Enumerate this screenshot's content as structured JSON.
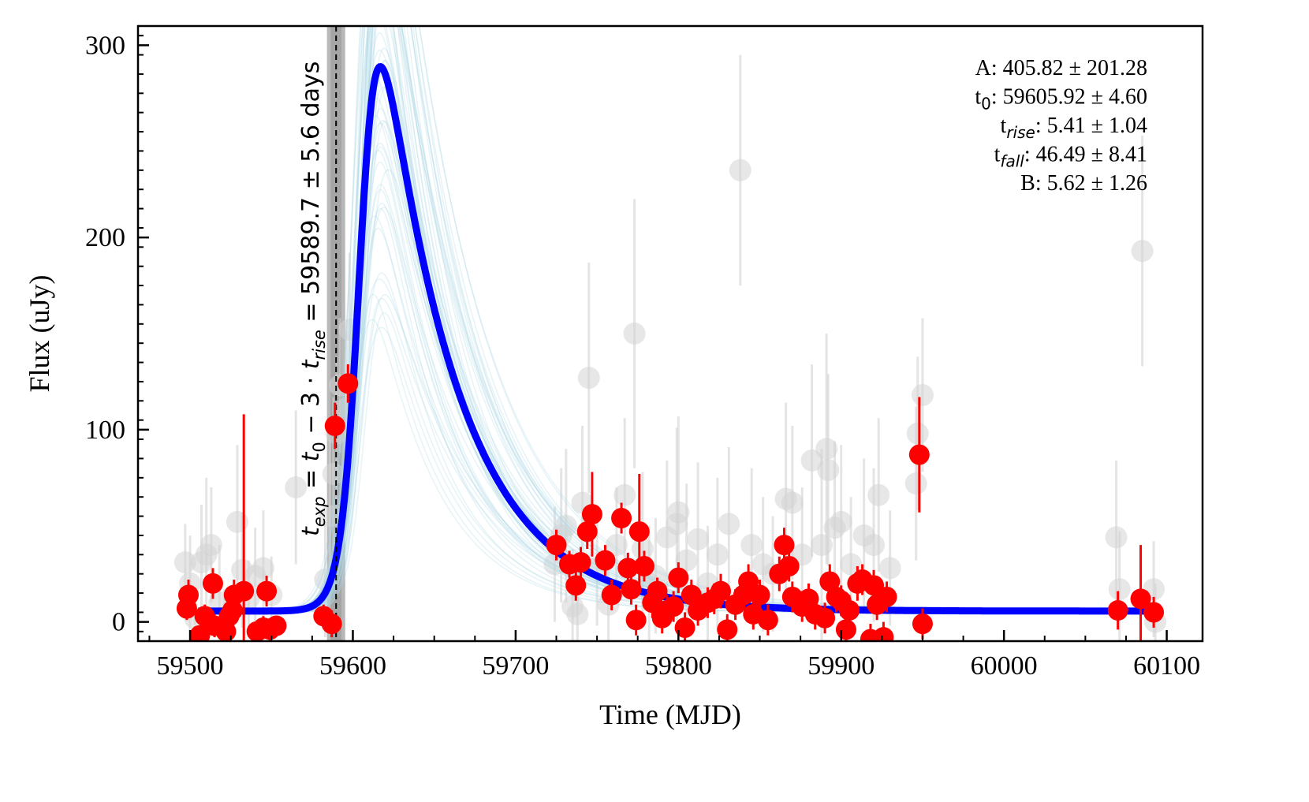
{
  "chart_data": {
    "type": "scatter",
    "xlabel": "Time (MJD)",
    "ylabel": "Flux (uJy)",
    "xlim": [
      59468,
      60122
    ],
    "ylim": [
      -10,
      310
    ],
    "x_ticks": [
      59500,
      59600,
      59700,
      59800,
      59900,
      60000,
      60100
    ],
    "y_ticks": [
      0,
      100,
      200,
      300
    ],
    "grid": false,
    "colors": {
      "detections": "#ff0000",
      "other": "#d3d3d3",
      "model": "#0000ff",
      "samples": "#add8e6",
      "explosion_band": "#808080"
    },
    "model": {
      "A": 405.82,
      "t0": 59605.92,
      "t_rise": 5.41,
      "t_fall": 46.49,
      "B": 5.62,
      "x_range": [
        59505,
        60090
      ]
    },
    "explosion": {
      "value": 59589.7,
      "err": 5.6
    },
    "explosion_label": {
      "t": "t",
      "exp": "exp",
      "eq1": " = ",
      "t0": "t",
      "zero": "0",
      "minus": " − 3 · ",
      "tr": "t",
      "rise": "rise",
      "rest": " = 59589.7 ± 5.6 days"
    },
    "params": [
      {
        "name": "A",
        "sub": "",
        "value": ": 405.82 ± 201.28"
      },
      {
        "name": "t",
        "sub": "0",
        "value": ": 59605.92 ± 4.60"
      },
      {
        "name": "t",
        "sub": "rise",
        "value": ": 5.41 ± 1.04"
      },
      {
        "name": "t",
        "sub": "fall",
        "value": ": 46.49 ± 8.41"
      },
      {
        "name": "B",
        "sub": "",
        "value": ": 5.62 ± 1.26"
      }
    ],
    "red_points": [
      [
        59498,
        7,
        6
      ],
      [
        59499,
        14,
        8
      ],
      [
        59506,
        -7,
        5
      ],
      [
        59509,
        3,
        6
      ],
      [
        59514,
        20,
        8
      ],
      [
        59515,
        -2,
        6
      ],
      [
        59522,
        -5,
        6
      ],
      [
        59524,
        3,
        5
      ],
      [
        59526,
        6,
        6
      ],
      [
        59527,
        14,
        8
      ],
      [
        59533,
        16,
        92
      ],
      [
        59541,
        -5,
        5
      ],
      [
        59545,
        -3,
        6
      ],
      [
        59547,
        16,
        8
      ],
      [
        59549,
        -4,
        6
      ],
      [
        59553,
        -2,
        5
      ],
      [
        59582,
        3,
        6
      ],
      [
        59587,
        -1,
        7
      ],
      [
        59589,
        102,
        12
      ],
      [
        59597,
        124,
        10
      ],
      [
        59725,
        40,
        8
      ],
      [
        59733,
        30,
        7
      ],
      [
        59737,
        19,
        8
      ],
      [
        59740,
        31,
        8
      ],
      [
        59744,
        47,
        9
      ],
      [
        59747,
        56,
        22
      ],
      [
        59755,
        32,
        8
      ],
      [
        59759,
        14,
        8
      ],
      [
        59765,
        54,
        8
      ],
      [
        59769,
        28,
        8
      ],
      [
        59771,
        17,
        8
      ],
      [
        59774,
        1,
        8
      ],
      [
        59776,
        47,
        30
      ],
      [
        59779,
        29,
        8
      ],
      [
        59784,
        10,
        8
      ],
      [
        59787,
        16,
        7
      ],
      [
        59790,
        2,
        8
      ],
      [
        59793,
        6,
        8
      ],
      [
        59797,
        8,
        8
      ],
      [
        59800,
        23,
        8
      ],
      [
        59804,
        -3,
        8
      ],
      [
        59808,
        14,
        8
      ],
      [
        59812,
        6,
        8
      ],
      [
        59818,
        10,
        8
      ],
      [
        59822,
        12,
        8
      ],
      [
        59826,
        16,
        9
      ],
      [
        59830,
        -4,
        8
      ],
      [
        59835,
        9,
        8
      ],
      [
        59840,
        14,
        8
      ],
      [
        59843,
        21,
        9
      ],
      [
        59846,
        4,
        8
      ],
      [
        59850,
        14,
        8
      ],
      [
        59855,
        1,
        8
      ],
      [
        59862,
        25,
        9
      ],
      [
        59865,
        40,
        9
      ],
      [
        59868,
        29,
        8
      ],
      [
        59870,
        13,
        8
      ],
      [
        59876,
        8,
        8
      ],
      [
        59880,
        12,
        8
      ],
      [
        59884,
        4,
        8
      ],
      [
        59890,
        2,
        8
      ],
      [
        59893,
        21,
        9
      ],
      [
        59897,
        13,
        8
      ],
      [
        59900,
        11,
        8
      ],
      [
        59903,
        -4,
        8
      ],
      [
        59905,
        6,
        8
      ],
      [
        59910,
        20,
        9
      ],
      [
        59913,
        22,
        8
      ],
      [
        59918,
        -9,
        8
      ],
      [
        59920,
        19,
        8
      ],
      [
        59922,
        9,
        8
      ],
      [
        59926,
        -8,
        8
      ],
      [
        59928,
        13,
        8
      ],
      [
        59948,
        87,
        30
      ],
      [
        59950,
        -1,
        8
      ],
      [
        60070,
        6,
        10
      ],
      [
        60084,
        12,
        28
      ],
      [
        60092,
        5,
        8
      ]
    ],
    "grey_points": [
      [
        59497,
        31,
        20
      ],
      [
        59500,
        20,
        25
      ],
      [
        59503,
        2,
        15
      ],
      [
        59507,
        31,
        30
      ],
      [
        59510,
        35,
        40
      ],
      [
        59513,
        40,
        30
      ],
      [
        59518,
        10,
        30
      ],
      [
        59521,
        -3,
        20
      ],
      [
        59529,
        52,
        40
      ],
      [
        59532,
        27,
        30
      ],
      [
        59536,
        12,
        20
      ],
      [
        59540,
        24,
        25
      ],
      [
        59545,
        28,
        30
      ],
      [
        59550,
        14,
        20
      ],
      [
        59565,
        70,
        40
      ],
      [
        59583,
        22,
        30
      ],
      [
        59586,
        55,
        40
      ],
      [
        59588,
        77,
        40
      ],
      [
        59590,
        98,
        40
      ],
      [
        59592,
        123,
        35
      ],
      [
        59596,
        111,
        40
      ],
      [
        59598,
        152,
        40
      ],
      [
        59724,
        30,
        30
      ],
      [
        59728,
        45,
        35
      ],
      [
        59731,
        50,
        40
      ],
      [
        59735,
        8,
        30
      ],
      [
        59738,
        4,
        30
      ],
      [
        59741,
        62,
        40
      ],
      [
        59745,
        127,
        60
      ],
      [
        59750,
        28,
        30
      ],
      [
        59757,
        9,
        25
      ],
      [
        59762,
        40,
        30
      ],
      [
        59767,
        66,
        40
      ],
      [
        59773,
        150,
        70
      ],
      [
        59778,
        38,
        40
      ],
      [
        59782,
        20,
        30
      ],
      [
        59786,
        24,
        30
      ],
      [
        59793,
        44,
        40
      ],
      [
        59799,
        51,
        50
      ],
      [
        59800,
        57,
        50
      ],
      [
        59805,
        32,
        40
      ],
      [
        59812,
        43,
        40
      ],
      [
        59818,
        20,
        30
      ],
      [
        59824,
        35,
        40
      ],
      [
        59831,
        51,
        40
      ],
      [
        59838,
        235,
        60
      ],
      [
        59845,
        40,
        40
      ],
      [
        59852,
        30,
        35
      ],
      [
        59858,
        25,
        30
      ],
      [
        59866,
        64,
        50
      ],
      [
        59870,
        62,
        40
      ],
      [
        59876,
        35,
        35
      ],
      [
        59882,
        84,
        50
      ],
      [
        59888,
        40,
        50
      ],
      [
        59891,
        90,
        60
      ],
      [
        59892,
        79,
        50
      ],
      [
        59896,
        49,
        45
      ],
      [
        59900,
        52,
        40
      ],
      [
        59906,
        30,
        35
      ],
      [
        59914,
        45,
        40
      ],
      [
        59920,
        40,
        40
      ],
      [
        59923,
        66,
        40
      ],
      [
        59930,
        28,
        30
      ],
      [
        59946,
        72,
        40
      ],
      [
        59947,
        98,
        40
      ],
      [
        59950,
        118,
        40
      ],
      [
        60069,
        44,
        40
      ],
      [
        60071,
        17,
        30
      ],
      [
        60085,
        193,
        60
      ],
      [
        60092,
        17,
        25
      ],
      [
        60093,
        0,
        20
      ]
    ]
  }
}
